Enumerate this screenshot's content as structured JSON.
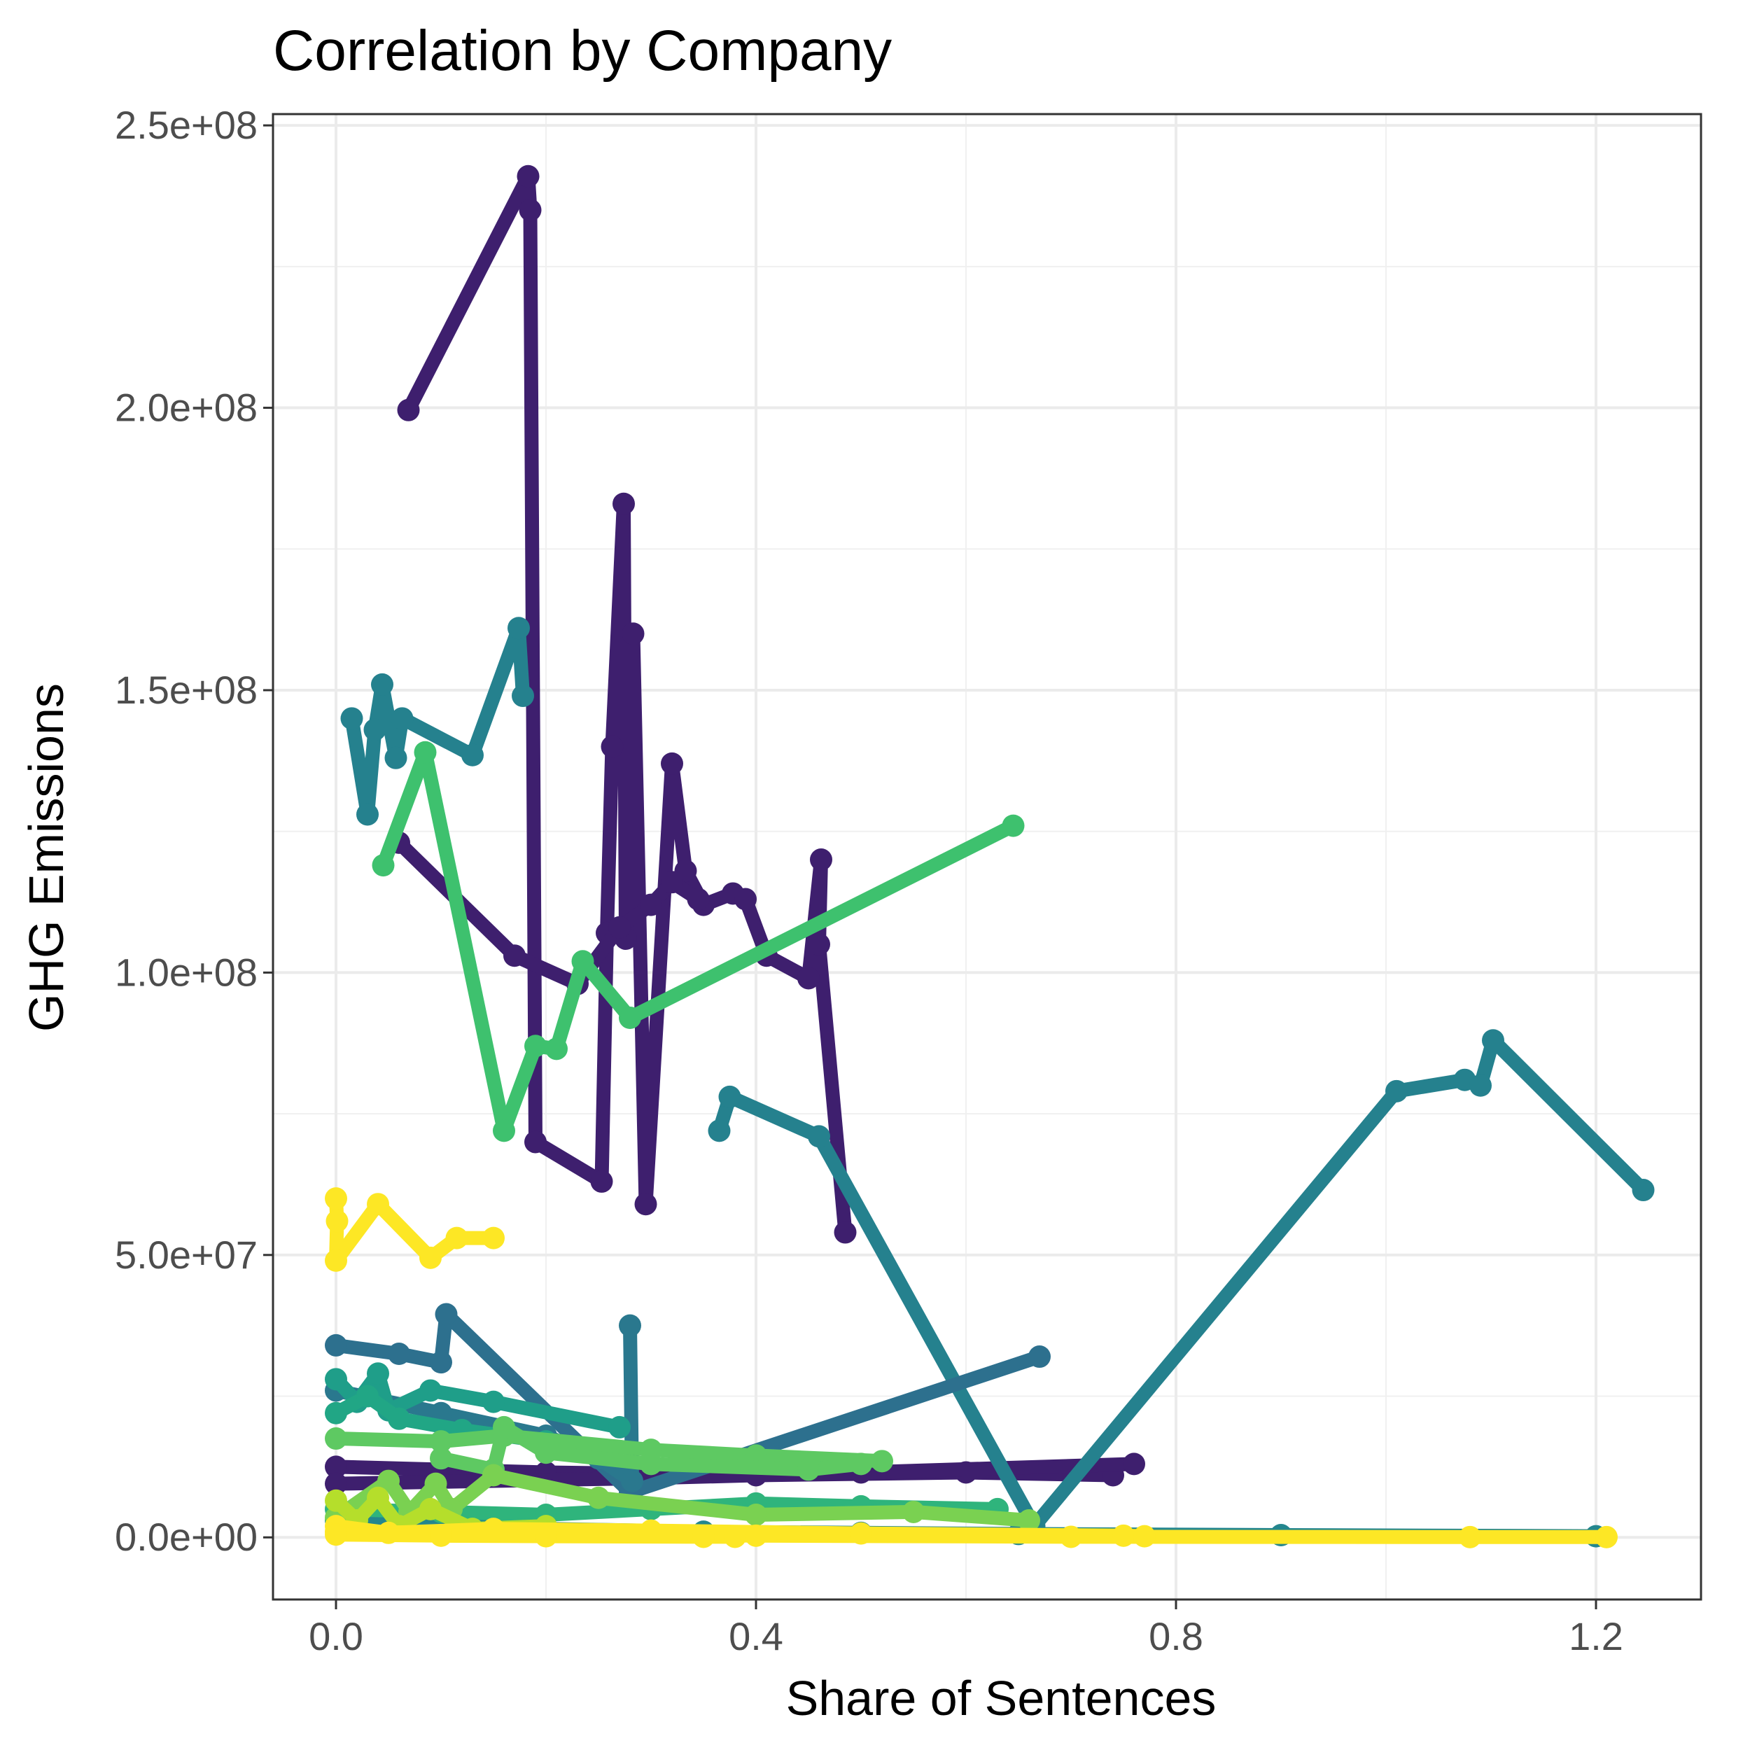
{
  "chart_data": {
    "type": "line",
    "title": "Correlation by Company",
    "xlabel": "Share of Sentences",
    "ylabel": "GHG Emissions",
    "xlim": [
      -0.06,
      1.3
    ],
    "ylim": [
      -11000000,
      252000000
    ],
    "x_ticks": [
      0.0,
      0.4,
      0.8,
      1.2
    ],
    "x_tick_labels": [
      "0.0",
      "0.4",
      "0.8",
      "1.2"
    ],
    "y_ticks": [
      0,
      50000000,
      100000000,
      150000000,
      200000000,
      250000000
    ],
    "y_tick_labels": [
      "0.0e+00",
      "5.0e+07",
      "1.0e+08",
      "1.5e+08",
      "2.0e+08",
      "2.5e+08"
    ],
    "grid": true,
    "legend": "none",
    "markers": true,
    "series": [
      {
        "color": "#3e1f6e",
        "points": [
          [
            0.069,
            199600000
          ],
          [
            0.183,
            241000000
          ],
          [
            0.185,
            235000000
          ],
          [
            0.19,
            70000000
          ],
          [
            0.253,
            63000000
          ],
          [
            0.258,
            107000000
          ],
          [
            0.263,
            140000000
          ],
          [
            0.274,
            183000000
          ],
          [
            0.276,
            106000000
          ],
          [
            0.283,
            160000000
          ],
          [
            0.295,
            59000000
          ],
          [
            0.32,
            137000000
          ],
          [
            0.333,
            118000000
          ],
          [
            0.35,
            112000000
          ],
          [
            0.378,
            114000000
          ],
          [
            0.39,
            113000000
          ],
          [
            0.41,
            103000000
          ],
          [
            0.45,
            99000000
          ],
          [
            0.462,
            120000000
          ],
          [
            0.46,
            105000000
          ],
          [
            0.485,
            54000000
          ]
        ]
      },
      {
        "color": "#3e1f6e",
        "points": [
          [
            0.06,
            123000000
          ],
          [
            0.17,
            103000000
          ],
          [
            0.23,
            98000000
          ],
          [
            0.27,
            108000000
          ],
          [
            0.3,
            112000000
          ],
          [
            0.32,
            116000000
          ],
          [
            0.345,
            113000000
          ]
        ]
      },
      {
        "color": "#3e1f6e",
        "points": [
          [
            0.0,
            12500000
          ],
          [
            0.2,
            11500000
          ],
          [
            0.4,
            11000000
          ],
          [
            0.6,
            11500000
          ],
          [
            0.74,
            11000000
          ]
        ]
      },
      {
        "color": "#3e1f6e",
        "points": [
          [
            0.0,
            9500000
          ],
          [
            0.3,
            10500000
          ],
          [
            0.5,
            11500000
          ],
          [
            0.76,
            13000000
          ]
        ]
      },
      {
        "color": "#25818e",
        "points": [
          [
            0.015,
            145000000
          ],
          [
            0.03,
            128000000
          ],
          [
            0.037,
            143000000
          ],
          [
            0.044,
            151000000
          ],
          [
            0.057,
            138000000
          ],
          [
            0.063,
            145000000
          ],
          [
            0.13,
            138500000
          ],
          [
            0.174,
            161000000
          ],
          [
            0.178,
            149000000
          ]
        ]
      },
      {
        "color": "#25818e",
        "points": [
          [
            0.365,
            72000000
          ],
          [
            0.375,
            78000000
          ],
          [
            0.46,
            71000000
          ],
          [
            0.665,
            2000000
          ],
          [
            1.01,
            79000000
          ],
          [
            1.075,
            81000000
          ],
          [
            1.09,
            80000000
          ],
          [
            1.102,
            88000000
          ],
          [
            1.245,
            61500000
          ]
        ]
      },
      {
        "color": "#2d708e",
        "points": [
          [
            0.0,
            34000000
          ],
          [
            0.06,
            32500000
          ],
          [
            0.1,
            31000000
          ],
          [
            0.105,
            39500000
          ],
          [
            0.28,
            8000000
          ],
          [
            0.67,
            32000000
          ]
        ]
      },
      {
        "color": "#2a788e",
        "points": [
          [
            0.28,
            37500000
          ],
          [
            0.282,
            10000000
          ],
          [
            0.25,
            14000000
          ],
          [
            0.2,
            18000000
          ],
          [
            0.1,
            22000000
          ],
          [
            0.0,
            26000000
          ]
        ]
      },
      {
        "color": "#1f9e89",
        "points": [
          [
            0.0,
            28000000
          ],
          [
            0.02,
            24000000
          ],
          [
            0.04,
            29000000
          ],
          [
            0.05,
            22500000
          ],
          [
            0.09,
            26000000
          ],
          [
            0.15,
            24000000
          ],
          [
            0.27,
            19500000
          ]
        ]
      },
      {
        "color": "#21a685",
        "points": [
          [
            0.0,
            22000000
          ],
          [
            0.03,
            25000000
          ],
          [
            0.06,
            21000000
          ],
          [
            0.12,
            19000000
          ],
          [
            0.2,
            17000000
          ]
        ]
      },
      {
        "color": "#24868e",
        "points": [
          [
            0.0,
            3000000
          ],
          [
            0.1,
            2500000
          ],
          [
            0.2,
            1500000
          ],
          [
            0.35,
            1000000
          ],
          [
            0.5,
            800000
          ],
          [
            0.65,
            600000
          ],
          [
            0.9,
            400000
          ],
          [
            1.2,
            200000
          ]
        ]
      },
      {
        "color": "#2fb47c",
        "points": [
          [
            0.0,
            5000000
          ],
          [
            0.1,
            4500000
          ],
          [
            0.2,
            4000000
          ],
          [
            0.3,
            5000000
          ],
          [
            0.4,
            6000000
          ],
          [
            0.5,
            5500000
          ],
          [
            0.63,
            5000000
          ]
        ]
      },
      {
        "color": "#3ec16e",
        "points": [
          [
            0.045,
            119000000
          ],
          [
            0.085,
            139000000
          ],
          [
            0.16,
            72000000
          ],
          [
            0.19,
            87000000
          ],
          [
            0.21,
            86500000
          ],
          [
            0.235,
            102000000
          ],
          [
            0.28,
            92000000
          ],
          [
            0.645,
            126000000
          ]
        ]
      },
      {
        "color": "#5ec962",
        "points": [
          [
            0.0,
            17500000
          ],
          [
            0.1,
            17000000
          ],
          [
            0.16,
            18000000
          ],
          [
            0.3,
            15500000
          ],
          [
            0.4,
            14500000
          ],
          [
            0.52,
            13500000
          ]
        ]
      },
      {
        "color": "#5ec962",
        "points": [
          [
            0.1,
            14000000
          ],
          [
            0.15,
            12000000
          ],
          [
            0.16,
            19500000
          ],
          [
            0.2,
            15000000
          ],
          [
            0.3,
            13000000
          ],
          [
            0.45,
            12000000
          ],
          [
            0.5,
            13000000
          ]
        ]
      },
      {
        "color": "#7ad151",
        "points": [
          [
            0.0,
            3500000
          ],
          [
            0.05,
            10000000
          ],
          [
            0.07,
            4500000
          ],
          [
            0.095,
            9500000
          ],
          [
            0.11,
            5000000
          ],
          [
            0.15,
            11000000
          ],
          [
            0.25,
            7000000
          ],
          [
            0.4,
            4000000
          ],
          [
            0.55,
            4500000
          ],
          [
            0.66,
            3000000
          ]
        ]
      },
      {
        "color": "#b5de2b",
        "points": [
          [
            0.0,
            6500000
          ],
          [
            0.02,
            3000000
          ],
          [
            0.04,
            7000000
          ],
          [
            0.06,
            2000000
          ],
          [
            0.09,
            5000000
          ],
          [
            0.13,
            1500000
          ],
          [
            0.2,
            2000000
          ]
        ]
      },
      {
        "color": "#fde725",
        "points": [
          [
            0.0,
            60000000
          ],
          [
            0.001,
            56000000
          ],
          [
            0.0,
            49000000
          ],
          [
            0.04,
            59000000
          ],
          [
            0.09,
            49500000
          ],
          [
            0.115,
            53000000
          ],
          [
            0.15,
            53000000
          ]
        ]
      },
      {
        "color": "#fde725",
        "points": [
          [
            0.0,
            1000000
          ],
          [
            0.2,
            600000
          ],
          [
            0.4,
            300000
          ],
          [
            0.7,
            100000
          ],
          [
            1.08,
            50000
          ],
          [
            1.21,
            50000
          ]
        ]
      },
      {
        "color": "#fde725",
        "points": [
          [
            0.0,
            2000000
          ],
          [
            0.05,
            800000
          ],
          [
            0.15,
            1500000
          ],
          [
            0.3,
            1200000
          ],
          [
            0.5,
            700000
          ],
          [
            0.75,
            300000
          ],
          [
            0.77,
            200000
          ]
        ]
      },
      {
        "color": "#fde725",
        "points": [
          [
            0.0,
            500000
          ],
          [
            0.1,
            300000
          ],
          [
            0.2,
            200000
          ],
          [
            0.35,
            100000
          ],
          [
            0.38,
            100000
          ]
        ]
      }
    ]
  }
}
